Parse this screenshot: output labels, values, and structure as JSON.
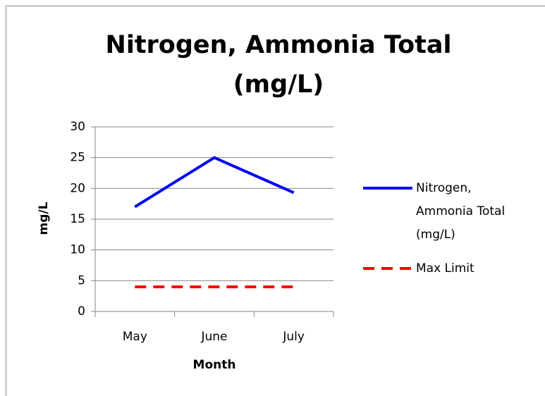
{
  "chart_data": {
    "type": "line",
    "title": "Nitrogen, Ammonia Total (mg/L)",
    "x_label": "Month",
    "y_label": "mg/L",
    "categories": [
      "May",
      "June",
      "July"
    ],
    "series": [
      {
        "name": "Nitrogen, Ammonia Total (mg/L)",
        "color": "#0000ff",
        "style": "solid",
        "values": [
          17,
          25,
          19.3
        ]
      },
      {
        "name": "Max Limit",
        "color": "#ff0000",
        "style": "dashed",
        "values": [
          4,
          4,
          4
        ]
      }
    ],
    "ylim": [
      0,
      30
    ],
    "yticks": [
      0,
      5,
      10,
      15,
      20,
      25,
      30
    ],
    "grid": true,
    "legend": "right"
  }
}
